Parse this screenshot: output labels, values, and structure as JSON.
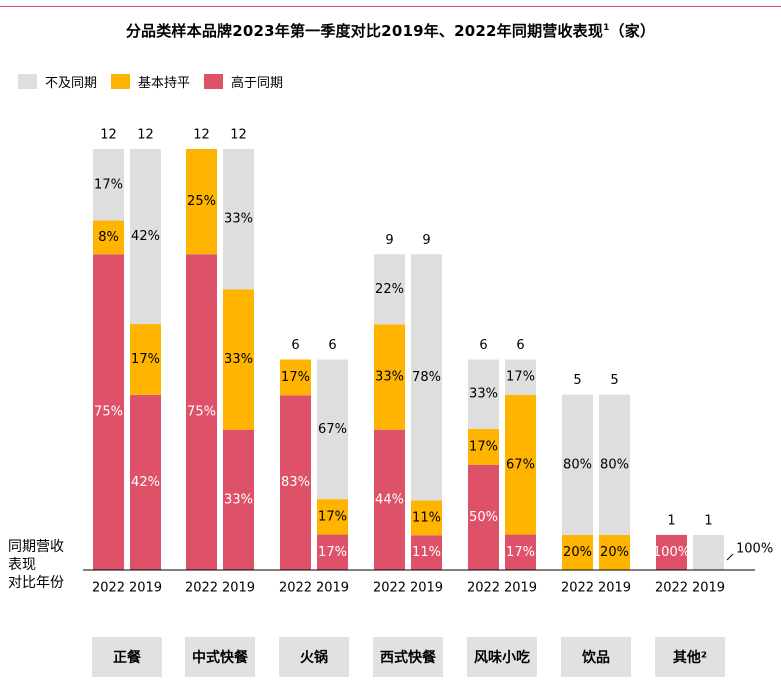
{
  "title": "分品类样本品牌2023年第一季度对比2019年、2022年同期营收表现",
  "title_sup": "1",
  "title_suffix": "（家）",
  "legend": [
    {
      "label": "不及同期",
      "color": "#dedede"
    },
    {
      "label": "基本持平",
      "color": "#ffb400"
    },
    {
      "label": "高于同期",
      "color": "#de5269"
    }
  ],
  "row_label": [
    "同期营收",
    "表现",
    "对比年份"
  ],
  "chart_data": {
    "type": "bar",
    "stacked": true,
    "normalized": true,
    "categories": [
      "正餐",
      "中式快餐",
      "火锅",
      "西式快餐",
      "风味小吃",
      "饮品",
      "其他²"
    ],
    "bar_labels": [
      "2022",
      "2019"
    ],
    "series_names": [
      "高于同期",
      "基本持平",
      "不及同期"
    ],
    "groups": [
      {
        "category": "正餐",
        "bars": [
          {
            "year": "2022",
            "count": "12",
            "higher": 75,
            "flat": 8,
            "lower": 17
          },
          {
            "year": "2019",
            "count": "12",
            "higher": 42,
            "flat": 17,
            "lower": 42
          }
        ]
      },
      {
        "category": "中式快餐",
        "bars": [
          {
            "year": "2022",
            "count": "12",
            "higher": 75,
            "flat": 25,
            "lower": 0
          },
          {
            "year": "2019",
            "count": "12",
            "higher": 33,
            "flat": 33,
            "lower": 33
          }
        ]
      },
      {
        "category": "火锅",
        "bars": [
          {
            "year": "2022",
            "count": "6",
            "higher": 83,
            "flat": 17,
            "lower": 0
          },
          {
            "year": "2019",
            "count": "6",
            "higher": 17,
            "flat": 17,
            "lower": 67
          }
        ]
      },
      {
        "category": "西式快餐",
        "bars": [
          {
            "year": "2022",
            "count": "9",
            "higher": 44,
            "flat": 33,
            "lower": 22
          },
          {
            "year": "2019",
            "count": "9",
            "higher": 11,
            "flat": 11,
            "lower": 78
          }
        ]
      },
      {
        "category": "风味小吃",
        "bars": [
          {
            "year": "2022",
            "count": "6",
            "higher": 50,
            "flat": 17,
            "lower": 33
          },
          {
            "year": "2019",
            "count": "6",
            "higher": 17,
            "flat": 67,
            "lower": 17
          }
        ]
      },
      {
        "category": "饮品",
        "bars": [
          {
            "year": "2022",
            "count": "5",
            "higher": 0,
            "flat": 20,
            "lower": 80
          },
          {
            "year": "2019",
            "count": "5",
            "higher": 0,
            "flat": 20,
            "lower": 80
          }
        ]
      },
      {
        "category": "其他²",
        "bars": [
          {
            "year": "2022",
            "count": "1",
            "higher": 100,
            "flat": 0,
            "lower": 0
          },
          {
            "year": "2019",
            "count": "1",
            "higher": 0,
            "flat": 0,
            "lower": 100
          }
        ]
      }
    ],
    "max_count": 12,
    "colors": {
      "higher": "#de5269",
      "flat": "#ffb400",
      "lower": "#dedede"
    }
  }
}
